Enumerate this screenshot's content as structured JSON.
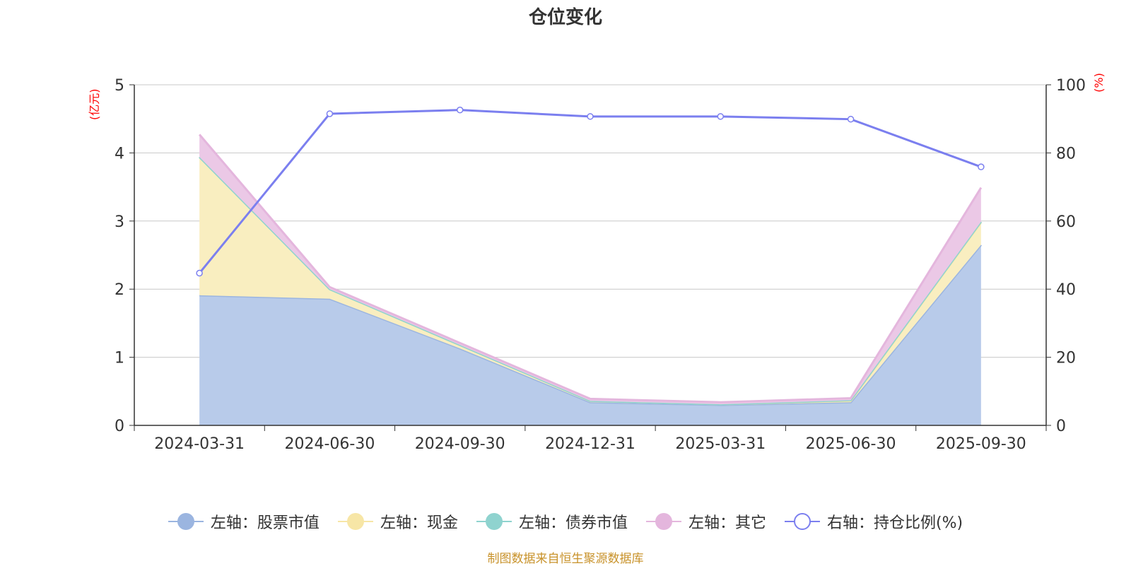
{
  "chart_data": {
    "type": "area",
    "title": "仓位变化",
    "left_axis_unit": "(亿元)",
    "right_axis_unit": "(%)",
    "categories": [
      "2024-03-31",
      "2024-06-30",
      "2024-09-30",
      "2024-12-31",
      "2025-03-31",
      "2025-06-30",
      "2025-09-30"
    ],
    "ylim_left": [
      0,
      5
    ],
    "yticks_left": [
      0,
      1,
      2,
      3,
      4,
      5
    ],
    "ylim_right": [
      0,
      100
    ],
    "yticks_right": [
      0,
      20,
      40,
      60,
      80,
      100
    ],
    "grid": true,
    "stacked": true,
    "legend_position": "bottom",
    "series": [
      {
        "name": "左轴：股票市值",
        "axis": "left",
        "color": "#9bb5e0",
        "fill": "#b8cbea",
        "values": [
          1.91,
          1.86,
          1.13,
          0.34,
          0.3,
          0.34,
          2.65
        ]
      },
      {
        "name": "左轴：现金",
        "axis": "left",
        "color": "#f7e6a6",
        "fill": "#f9eec0",
        "values": [
          2.03,
          0.14,
          0.05,
          0.02,
          0.01,
          0.02,
          0.33
        ]
      },
      {
        "name": "左轴：债券市值",
        "axis": "left",
        "color": "#8fd3cf",
        "fill": "#a9dcd8",
        "values": [
          0.0,
          0.0,
          0.0,
          0.0,
          0.0,
          0.01,
          0.01
        ]
      },
      {
        "name": "左轴：其它",
        "axis": "left",
        "color": "#e4b6dd",
        "fill": "#ebc8e6",
        "values": [
          0.33,
          0.03,
          0.03,
          0.03,
          0.03,
          0.03,
          0.5
        ]
      },
      {
        "name": "右轴：持仓比例(%)",
        "axis": "right",
        "type": "line",
        "color": "#7b7fef",
        "values": [
          44.7,
          91.5,
          92.6,
          90.7,
          90.7,
          89.9,
          75.9
        ]
      }
    ]
  },
  "source": "制图数据来自恒生聚源数据库"
}
